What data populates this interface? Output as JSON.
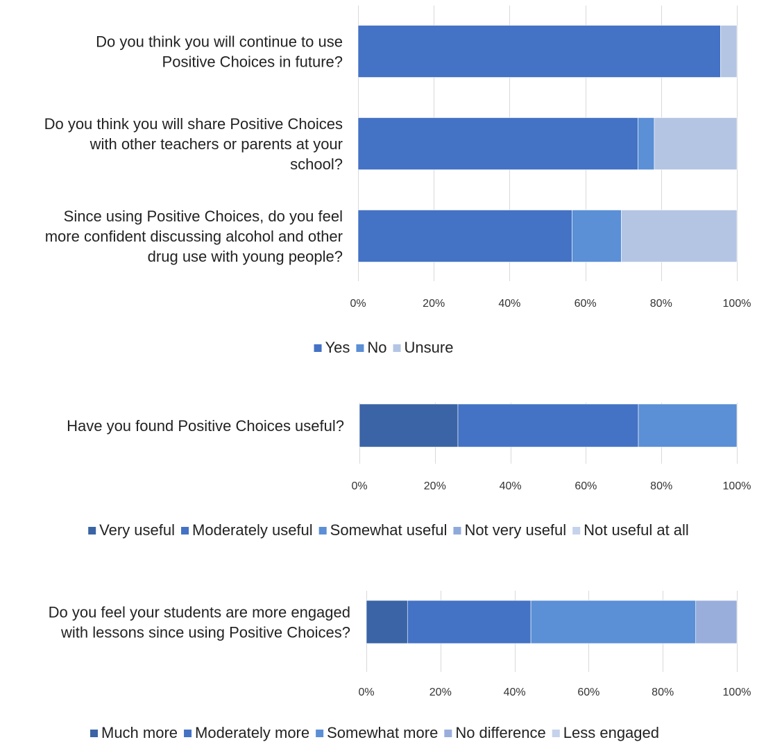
{
  "chart_data": [
    {
      "type": "bar",
      "orientation": "horizontal",
      "stacked": true,
      "categories": [
        [
          "Do you think you will continue to use",
          "Positive Choices in future?"
        ],
        [
          "Do you think you will share Positive Choices",
          "with other teachers or parents at your",
          "school?"
        ],
        [
          "Since using Positive Choices, do you feel",
          "more confident discussing alcohol and other",
          "drug use with young people?"
        ]
      ],
      "series": [
        {
          "name": "Yes",
          "color": "#4472C4",
          "values": [
            95.7,
            73.9,
            56.5
          ]
        },
        {
          "name": "No",
          "color": "#5B8FD6",
          "values": [
            0,
            4.3,
            13.0
          ]
        },
        {
          "name": "Unsure",
          "color": "#B4C5E4",
          "values": [
            4.3,
            21.8,
            30.5
          ]
        }
      ],
      "xlim": [
        0,
        100
      ],
      "ticks": [
        "0%",
        "20%",
        "40%",
        "60%",
        "80%",
        "100%"
      ],
      "grid": true,
      "legend": "bottom"
    },
    {
      "type": "bar",
      "orientation": "horizontal",
      "stacked": true,
      "categories": [
        [
          "Have you found Positive Choices useful?"
        ]
      ],
      "series": [
        {
          "name": "Very useful",
          "color": "#3A64A6",
          "values": [
            26.1
          ]
        },
        {
          "name": "Moderately useful",
          "color": "#4472C4",
          "values": [
            47.8
          ]
        },
        {
          "name": "Somewhat useful",
          "color": "#5B8FD6",
          "values": [
            26.1
          ]
        },
        {
          "name": "Not very useful",
          "color": "#8FA9DB",
          "values": [
            0
          ]
        },
        {
          "name": "Not useful at all",
          "color": "#C5D2EC",
          "values": [
            0
          ]
        }
      ],
      "xlim": [
        0,
        100
      ],
      "ticks": [
        "0%",
        "20%",
        "40%",
        "60%",
        "80%",
        "100%"
      ],
      "grid": true,
      "legend": "bottom"
    },
    {
      "type": "bar",
      "orientation": "horizontal",
      "stacked": true,
      "categories": [
        [
          "Do you feel your students are more engaged",
          "with lessons since using Positive Choices?"
        ]
      ],
      "series": [
        {
          "name": "Much more",
          "color": "#3A64A6",
          "values": [
            11.1
          ]
        },
        {
          "name": "Moderately more",
          "color": "#4472C4",
          "values": [
            33.3
          ]
        },
        {
          "name": "Somewhat more",
          "color": "#5B8FD6",
          "values": [
            44.5
          ]
        },
        {
          "name": "No difference",
          "color": "#9AAEDC",
          "values": [
            11.1
          ]
        },
        {
          "name": "Less engaged",
          "color": "#C5D2EC",
          "values": [
            0
          ]
        }
      ],
      "xlim": [
        0,
        100
      ],
      "ticks": [
        "0%",
        "20%",
        "40%",
        "60%",
        "80%",
        "100%"
      ],
      "grid": true,
      "legend": "bottom"
    }
  ]
}
